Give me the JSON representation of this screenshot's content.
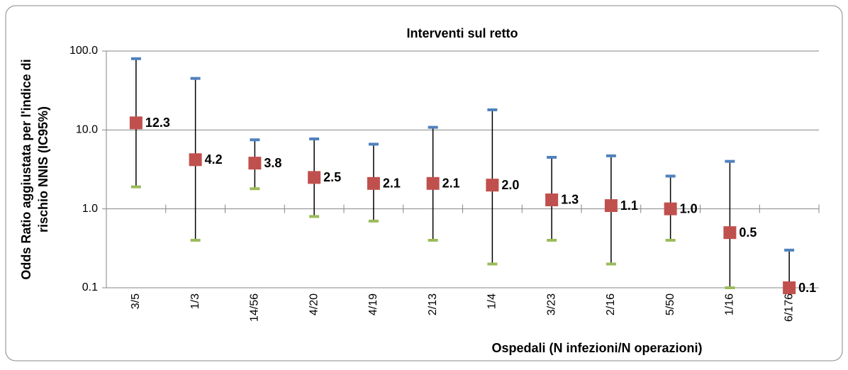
{
  "chart_data": {
    "type": "errorbar",
    "title": "Interventi sul retto",
    "x_label": "Ospedali (N infezioni/N operazioni)",
    "y_label": [
      "Odds Ratio aggiustata per l'indice di",
      "rischio NNIS (IC95%)"
    ],
    "categories": [
      "3/5",
      "1/3",
      "14/56",
      "4/20",
      "4/19",
      "2/13",
      "1/4",
      "3/23",
      "2/16",
      "5/50",
      "1/16",
      "6/176"
    ],
    "values": [
      12.3,
      4.2,
      3.8,
      2.5,
      2.1,
      2.1,
      2.0,
      1.3,
      1.1,
      1.0,
      0.5,
      0.1
    ],
    "value_labels": [
      "12.3",
      "4.2",
      "3.8",
      "2.5",
      "2.1",
      "2.1",
      "2.0",
      "1.3",
      "1.1",
      "1.0",
      "0.5",
      "0.1"
    ],
    "upper": [
      80,
      45,
      7.5,
      7.7,
      6.6,
      10.8,
      18,
      4.5,
      4.7,
      2.6,
      4.0,
      0.3
    ],
    "lower": [
      1.9,
      0.4,
      1.8,
      0.8,
      0.7,
      0.4,
      0.2,
      0.4,
      0.2,
      0.4,
      0.1,
      0.1
    ],
    "color": "#c0504d",
    "upper_color": "#4f81bd",
    "lower_color": "#9bbb59",
    "log_scale": true,
    "grid": true,
    "ylim": [
      0.1,
      100
    ],
    "yticks": [
      0.1,
      {
        "value": 1,
        "label": "1.0"
      },
      {
        "value": 10,
        "label": "10.0"
      },
      {
        "value": 100,
        "label": "100.0"
      }
    ]
  }
}
